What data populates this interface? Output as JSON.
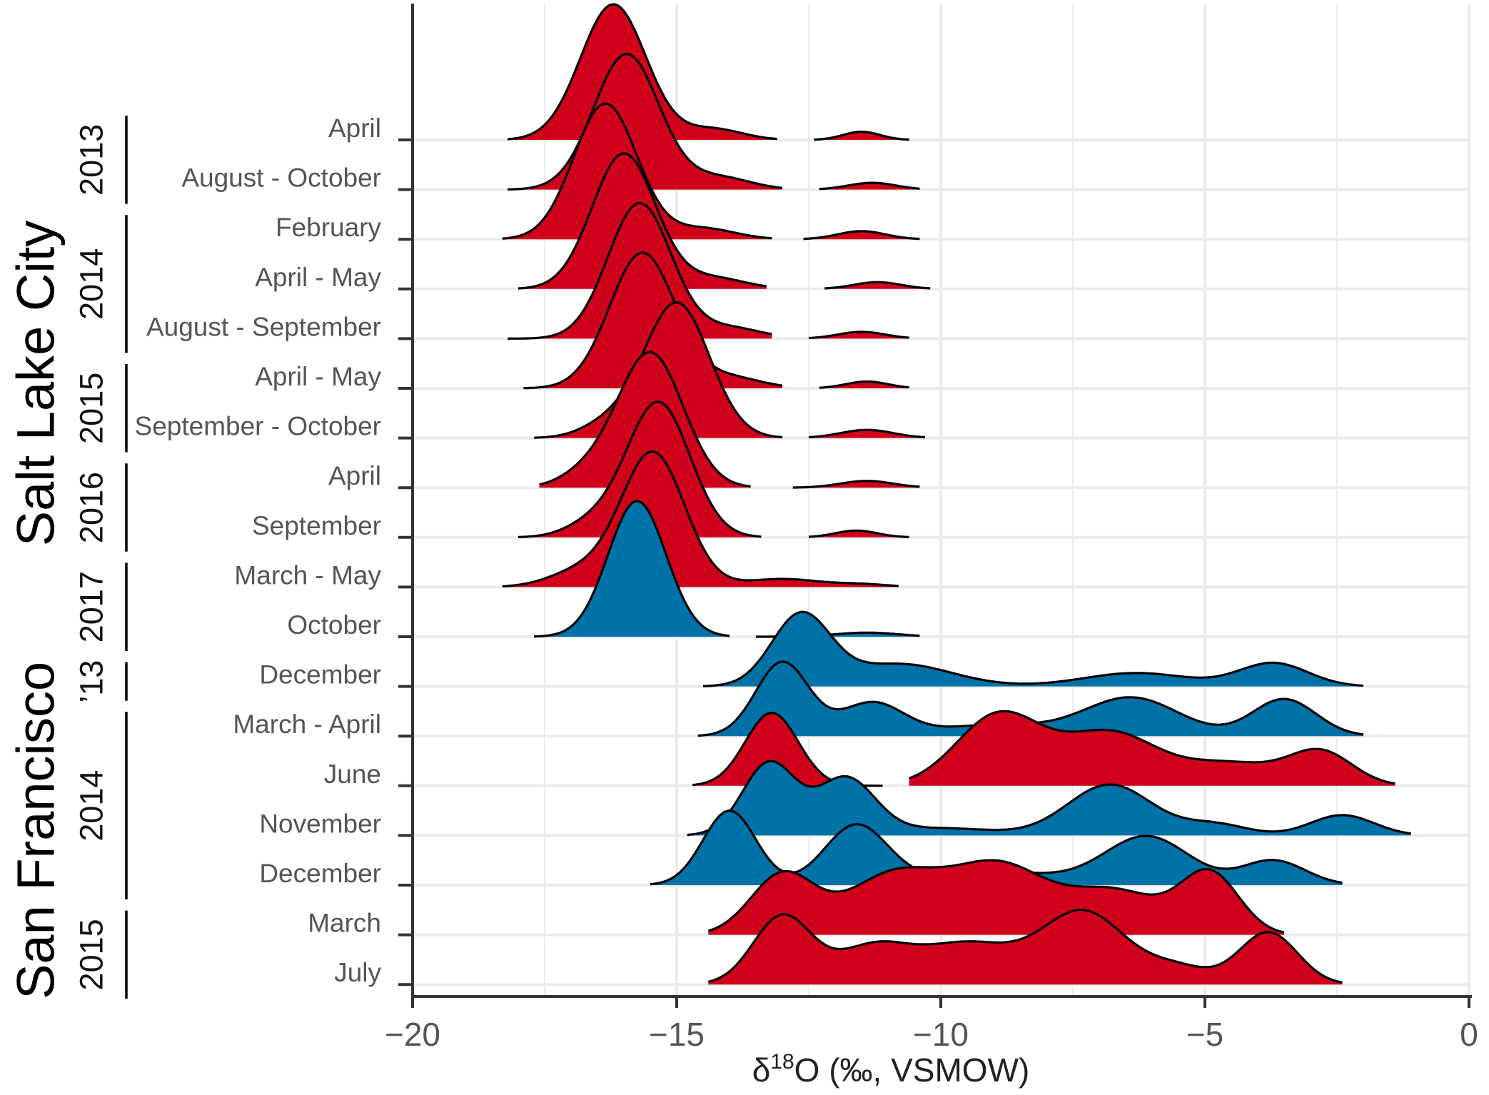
{
  "chart_data": {
    "type": "ridgeline",
    "xlabel": "δ18O (‰, VSMOW)",
    "xlabel_parts": {
      "prefix": "δ",
      "superscript": "18",
      "suffix": "O (‰, VSMOW)"
    },
    "xlim": [
      -20,
      0
    ],
    "xticks": [
      -20,
      -15,
      -10,
      -5,
      0
    ],
    "xtick_labels": [
      "−20",
      "−15",
      "−10",
      "−5",
      "0"
    ],
    "grid": true,
    "colors": {
      "red": "#D0021B",
      "blue": "#0072A8"
    },
    "cities": [
      {
        "name": "Salt Lake City",
        "first_row": 0,
        "last_row": 10
      },
      {
        "name": "San Francisco",
        "first_row": 11,
        "last_row": 17
      }
    ],
    "year_groups": [
      {
        "label": "2013",
        "rows": [
          0,
          1
        ]
      },
      {
        "label": "2014",
        "rows": [
          2,
          4
        ]
      },
      {
        "label": "2015",
        "rows": [
          5,
          6
        ]
      },
      {
        "label": "2016",
        "rows": [
          7,
          8
        ]
      },
      {
        "label": "2017",
        "rows": [
          9,
          10
        ]
      },
      {
        "label": "’13",
        "rows": [
          11,
          11
        ]
      },
      {
        "label": "2014",
        "rows": [
          12,
          15
        ]
      },
      {
        "label": "2015",
        "rows": [
          16,
          17
        ]
      }
    ],
    "series": [
      {
        "name": "April",
        "color": "red",
        "peak_height": 1.0,
        "segments": [
          {
            "x_range": [
              -18.2,
              -13.1
            ],
            "components": [
              [
                -16.2,
                0.62,
                1.0
              ],
              [
                -14.3,
                0.55,
                0.08
              ]
            ]
          },
          {
            "x_range": [
              -12.4,
              -10.6
            ],
            "components": [
              [
                -11.5,
                0.35,
                0.06
              ]
            ]
          }
        ]
      },
      {
        "name": "August - October",
        "color": "red",
        "peak_height": 1.0,
        "segments": [
          {
            "x_range": [
              -18.2,
              -13.0
            ],
            "components": [
              [
                -15.95,
                0.62,
                1.0
              ],
              [
                -14.2,
                0.6,
                0.09
              ]
            ]
          },
          {
            "x_range": [
              -12.3,
              -10.4
            ],
            "components": [
              [
                -11.3,
                0.45,
                0.05
              ]
            ]
          }
        ]
      },
      {
        "name": "February",
        "color": "red",
        "peak_height": 1.0,
        "segments": [
          {
            "x_range": [
              -18.3,
              -13.2
            ],
            "components": [
              [
                -16.35,
                0.6,
                1.0
              ],
              [
                -14.5,
                0.6,
                0.08
              ]
            ]
          },
          {
            "x_range": [
              -12.6,
              -10.4
            ],
            "components": [
              [
                -11.5,
                0.45,
                0.06
              ]
            ]
          }
        ]
      },
      {
        "name": "April - May",
        "color": "red",
        "peak_height": 1.0,
        "segments": [
          {
            "x_range": [
              -18.0,
              -13.3
            ],
            "components": [
              [
                -16.0,
                0.6,
                1.0
              ],
              [
                -14.3,
                0.6,
                0.08
              ]
            ]
          },
          {
            "x_range": [
              -12.2,
              -10.2
            ],
            "components": [
              [
                -11.2,
                0.45,
                0.05
              ]
            ]
          }
        ]
      },
      {
        "name": "August - September",
        "color": "red",
        "peak_height": 1.0,
        "segments": [
          {
            "x_range": [
              -18.2,
              -13.2
            ],
            "components": [
              [
                -15.7,
                0.6,
                1.0
              ],
              [
                -14.0,
                0.6,
                0.08
              ]
            ]
          },
          {
            "x_range": [
              -12.5,
              -10.6
            ],
            "components": [
              [
                -11.5,
                0.45,
                0.05
              ]
            ]
          }
        ]
      },
      {
        "name": "April - May",
        "color": "red",
        "peak_height": 1.0,
        "segments": [
          {
            "x_range": [
              -17.9,
              -13.0
            ],
            "components": [
              [
                -15.65,
                0.62,
                1.0
              ],
              [
                -14.0,
                0.6,
                0.08
              ]
            ]
          },
          {
            "x_range": [
              -12.3,
              -10.6
            ],
            "components": [
              [
                -11.4,
                0.4,
                0.05
              ]
            ]
          }
        ]
      },
      {
        "name": "September - October",
        "color": "red",
        "peak_height": 1.0,
        "segments": [
          {
            "x_range": [
              -17.7,
              -13.0
            ],
            "components": [
              [
                -15.0,
                0.62,
                1.0
              ],
              [
                -16.3,
                0.5,
                0.1
              ]
            ]
          },
          {
            "x_range": [
              -12.5,
              -10.3
            ],
            "components": [
              [
                -11.4,
                0.5,
                0.06
              ]
            ]
          }
        ]
      },
      {
        "name": "April",
        "color": "red",
        "peak_height": 1.0,
        "segments": [
          {
            "x_range": [
              -17.6,
              -13.6
            ],
            "components": [
              [
                -15.5,
                0.62,
                1.0
              ],
              [
                -16.7,
                0.5,
                0.1
              ]
            ]
          },
          {
            "x_range": [
              -12.8,
              -10.4
            ],
            "components": [
              [
                -11.4,
                0.5,
                0.05
              ]
            ]
          }
        ]
      },
      {
        "name": "September",
        "color": "red",
        "peak_height": 1.0,
        "segments": [
          {
            "x_range": [
              -18.0,
              -13.4
            ],
            "components": [
              [
                -15.35,
                0.6,
                1.0
              ],
              [
                -16.6,
                0.5,
                0.1
              ]
            ]
          },
          {
            "x_range": [
              -12.5,
              -10.6
            ],
            "components": [
              [
                -11.6,
                0.4,
                0.05
              ]
            ]
          }
        ]
      },
      {
        "name": "March - May",
        "color": "red",
        "peak_height": 1.0,
        "segments": [
          {
            "x_range": [
              -18.3,
              -10.8
            ],
            "components": [
              [
                -15.45,
                0.6,
                1.0
              ],
              [
                -16.8,
                0.6,
                0.12
              ],
              [
                -13.0,
                0.7,
                0.06
              ],
              [
                -11.5,
                0.5,
                0.02
              ]
            ]
          }
        ]
      },
      {
        "name": "October",
        "color": "blue",
        "peak_height": 1.0,
        "segments": [
          {
            "x_range": [
              -17.7,
              -14.0
            ],
            "components": [
              [
                -15.75,
                0.55,
                1.0
              ]
            ]
          },
          {
            "x_range": [
              -13.5,
              -10.4
            ],
            "components": [
              [
                -11.4,
                0.6,
                0.03
              ]
            ]
          }
        ]
      },
      {
        "name": "December",
        "color": "blue",
        "peak_height": 0.55,
        "segments": [
          {
            "x_range": [
              -14.5,
              -2.0
            ],
            "components": [
              [
                -12.65,
                0.55,
                1.0
              ],
              [
                -10.8,
                1.0,
                0.32
              ],
              [
                -6.3,
                1.0,
                0.19
              ],
              [
                -3.7,
                0.65,
                0.33
              ]
            ]
          }
        ]
      },
      {
        "name": "March - April",
        "color": "blue",
        "peak_height": 0.55,
        "segments": [
          {
            "x_range": [
              -14.6,
              -2.0
            ],
            "components": [
              [
                -13.0,
                0.5,
                1.0
              ],
              [
                -11.3,
                0.6,
                0.45
              ],
              [
                -9.0,
                1.0,
                0.15
              ],
              [
                -6.4,
                0.9,
                0.52
              ],
              [
                -3.5,
                0.6,
                0.5
              ]
            ]
          }
        ]
      },
      {
        "name": "June",
        "color": "red",
        "peak_height": 0.55,
        "segments": [
          {
            "x_range": [
              -14.7,
              -11.1
            ],
            "components": [
              [
                -13.2,
                0.5,
                1.0
              ]
            ]
          },
          {
            "x_range": [
              -10.6,
              -1.4
            ],
            "components": [
              [
                -8.9,
                0.8,
                0.97
              ],
              [
                -6.8,
                0.9,
                0.72
              ],
              [
                -4.5,
                0.9,
                0.3
              ],
              [
                -2.8,
                0.6,
                0.45
              ]
            ]
          }
        ]
      },
      {
        "name": "November",
        "color": "blue",
        "peak_height": 0.55,
        "segments": [
          {
            "x_range": [
              -14.8,
              -1.1
            ],
            "components": [
              [
                -13.25,
                0.5,
                1.0
              ],
              [
                -11.8,
                0.55,
                0.78
              ],
              [
                -10.0,
                1.0,
                0.1
              ],
              [
                -6.8,
                0.8,
                0.7
              ],
              [
                -4.8,
                0.6,
                0.15
              ],
              [
                -2.4,
                0.6,
                0.28
              ]
            ]
          }
        ]
      },
      {
        "name": "December",
        "color": "blue",
        "peak_height": 0.55,
        "segments": [
          {
            "x_range": [
              -15.5,
              -2.4
            ],
            "components": [
              [
                -14.0,
                0.5,
                1.0
              ],
              [
                -11.6,
                0.6,
                0.8
              ],
              [
                -9.0,
                1.2,
                0.18
              ],
              [
                -6.1,
                0.8,
                0.65
              ],
              [
                -3.7,
                0.6,
                0.33
              ]
            ]
          }
        ]
      },
      {
        "name": "March",
        "color": "red",
        "peak_height": 0.55,
        "segments": [
          {
            "x_range": [
              -14.4,
              -3.5
            ],
            "components": [
              [
                -13.0,
                0.6,
                0.8
              ],
              [
                -10.9,
                0.9,
                0.8
              ],
              [
                -8.9,
                0.9,
                0.9
              ],
              [
                -6.7,
                0.9,
                0.58
              ],
              [
                -4.9,
                0.55,
                0.8
              ]
            ]
          }
        ]
      },
      {
        "name": "July",
        "color": "red",
        "peak_height": 0.55,
        "segments": [
          {
            "x_range": [
              -14.4,
              -2.4
            ],
            "components": [
              [
                -13.0,
                0.55,
                0.85
              ],
              [
                -11.3,
                0.7,
                0.45
              ],
              [
                -9.5,
                0.9,
                0.5
              ],
              [
                -7.3,
                0.8,
                0.9
              ],
              [
                -5.5,
                0.6,
                0.2
              ],
              [
                -3.8,
                0.55,
                0.65
              ]
            ]
          }
        ]
      }
    ]
  }
}
